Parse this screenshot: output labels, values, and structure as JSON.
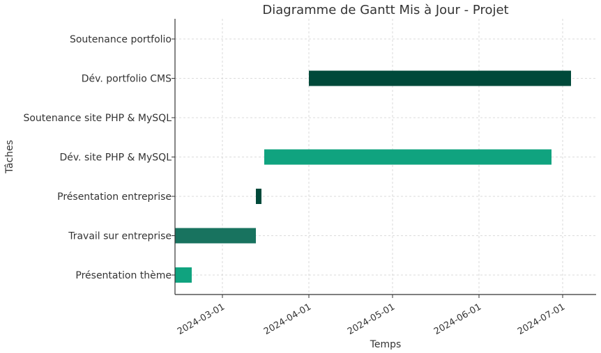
{
  "chart_data": {
    "type": "gantt",
    "title": "Diagramme de Gantt Mis à Jour - Projet",
    "xlabel": "Temps",
    "ylabel": "Tâches",
    "x_axis_type": "date",
    "xlim": [
      "2024-02-13",
      "2024-07-13"
    ],
    "x_ticks": [
      "2024-03-01",
      "2024-04-01",
      "2024-05-01",
      "2024-06-01",
      "2024-07-01"
    ],
    "grid": true,
    "grid_style": "dashed",
    "colors": {
      "dark": "#00493a",
      "mid": "#18735f",
      "light": "#10a37f",
      "axis": "#333333",
      "grid": "#cfcfcf"
    },
    "tasks": [
      {
        "name": "Soutenance portfolio",
        "start": null,
        "end": null,
        "color": "#00493a"
      },
      {
        "name": "Dév. portfolio CMS",
        "start": "2024-04-01",
        "end": "2024-07-04",
        "color": "#00493a"
      },
      {
        "name": "Soutenance site PHP & MySQL",
        "start": null,
        "end": null,
        "color": "#00493a"
      },
      {
        "name": "Dév. site PHP & MySQL",
        "start": "2024-03-16",
        "end": "2024-06-27",
        "color": "#10a37f"
      },
      {
        "name": "Présentation entreprise",
        "start": "2024-03-13",
        "end": "2024-03-15",
        "color": "#00493a"
      },
      {
        "name": "Travail sur entreprise",
        "start": "2024-02-13",
        "end": "2024-03-13",
        "color": "#18735f"
      },
      {
        "name": "Présentation thème",
        "start": "2024-02-13",
        "end": "2024-02-19",
        "color": "#10a37f"
      }
    ]
  }
}
